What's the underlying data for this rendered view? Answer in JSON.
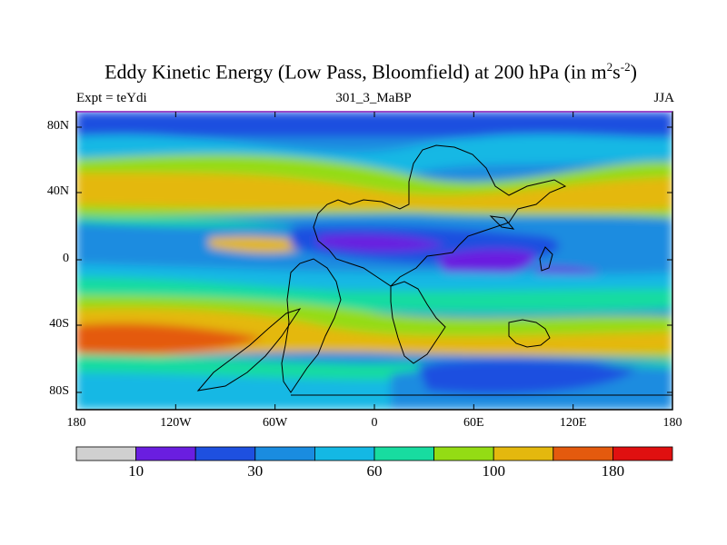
{
  "title": {
    "prefix": "Eddy Kinetic Energy (Low Pass, Bloomfield) at 200 hPa (in m",
    "sup1": "2",
    "mid": "s",
    "sup2": "-2",
    "suffix": ")"
  },
  "left_label": "Expt = teYdi",
  "center_label": "301_3_MaBP",
  "right_label": "JJA",
  "lat_ticks": [
    "80N",
    "40N",
    "0",
    "40S",
    "80S"
  ],
  "lon_ticks": [
    "180",
    "120W",
    "60W",
    "0",
    "60E",
    "120E",
    "180"
  ],
  "colorbar": {
    "colors": [
      "#d0d0d0",
      "#6a1ee0",
      "#1e50e0",
      "#1a8ce0",
      "#14b8e4",
      "#18dca0",
      "#94dc14",
      "#e4b80e",
      "#e45a0e",
      "#e01010"
    ],
    "labels": [
      "10",
      "30",
      "60",
      "100",
      "180"
    ]
  }
}
